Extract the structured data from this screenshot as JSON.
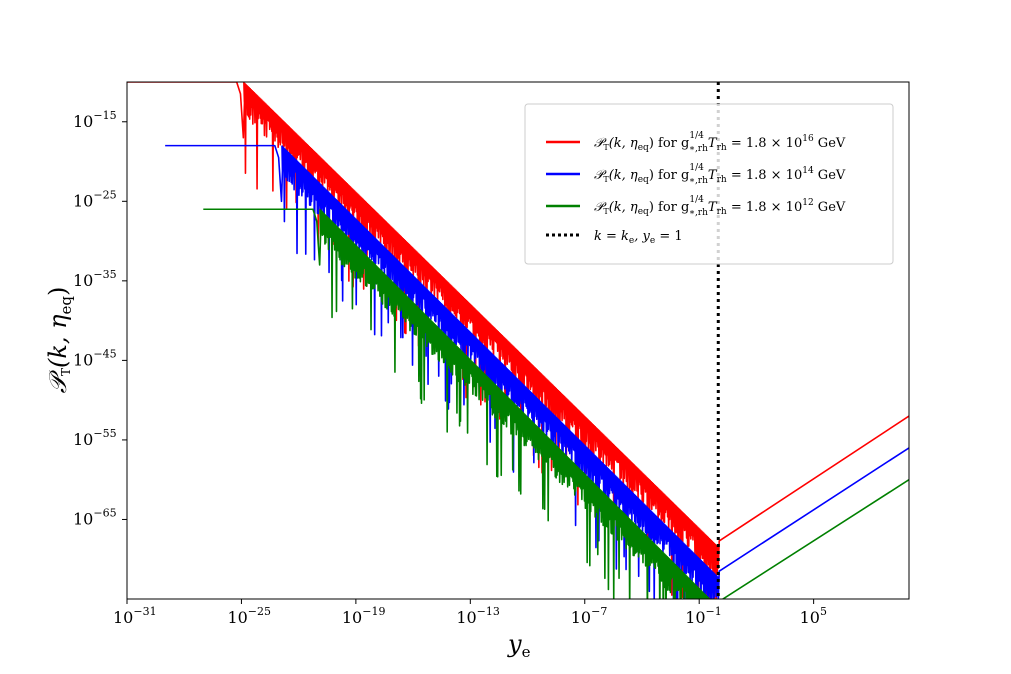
{
  "chart_data": {
    "type": "line",
    "x_scale": "log",
    "y_scale": "log",
    "xlim_log10": [
      -31,
      10
    ],
    "ylim_log10": [
      -75,
      -10
    ],
    "x_ticks": [
      {
        "base": "10",
        "exp": "−31",
        "log10": -31
      },
      {
        "base": "10",
        "exp": "−25",
        "log10": -25
      },
      {
        "base": "10",
        "exp": "−19",
        "log10": -19
      },
      {
        "base": "10",
        "exp": "−13",
        "log10": -13
      },
      {
        "base": "10",
        "exp": "−7",
        "log10": -7
      },
      {
        "base": "10",
        "exp": "−1",
        "log10": -1
      },
      {
        "base": "10",
        "exp": "5",
        "log10": 5
      }
    ],
    "y_ticks": [
      {
        "base": "10",
        "exp": "−15",
        "log10": -15
      },
      {
        "base": "10",
        "exp": "−25",
        "log10": -25
      },
      {
        "base": "10",
        "exp": "−35",
        "log10": -35
      },
      {
        "base": "10",
        "exp": "−45",
        "log10": -45
      },
      {
        "base": "10",
        "exp": "−55",
        "log10": -55
      },
      {
        "base": "10",
        "exp": "−65",
        "log10": -65
      }
    ],
    "xlabel": "y",
    "xlabel_sub": "e",
    "ylabel": "𝒫",
    "ylabel_sub": "T",
    "ylabel_args": "(k, η",
    "ylabel_args_sub": "eq",
    "ylabel_close": ")",
    "grid": false,
    "legend_position": "top-right",
    "series": [
      {
        "name_main": "𝒫",
        "name_sub": "T",
        "name_args": "(k, η",
        "name_args_sub": "eq",
        "name_mid": ") for g",
        "name_g_sup": "1/4",
        "name_g_sub": "∗,rh",
        "name_T": "T",
        "name_T_sub": "rh",
        "name_eq": " = 1.8 × 10",
        "name_exp": "16",
        "name_unit": " GeV",
        "color": "#ff0000",
        "plateau_log10_y": -10,
        "x_start_log10": -31,
        "x_dip_log10": -24.9,
        "slope_left": -2,
        "min_log10_y": -68.5,
        "x_min_log10": 0.0,
        "right_end_log10_y": -52
      },
      {
        "name_main": "𝒫",
        "name_sub": "T",
        "name_args": "(k, η",
        "name_args_sub": "eq",
        "name_mid": ") for g",
        "name_g_sup": "1/4",
        "name_g_sub": "∗,rh",
        "name_T": "T",
        "name_T_sub": "rh",
        "name_eq": " = 1.8 × 10",
        "name_exp": "14",
        "name_unit": " GeV",
        "color": "#0000ff",
        "plateau_log10_y": -18,
        "x_start_log10": -29,
        "x_dip_log10": -22.9,
        "slope_left": -2,
        "min_log10_y": -72.3,
        "x_min_log10": 0.0,
        "right_end_log10_y": -56
      },
      {
        "name_main": "𝒫",
        "name_sub": "T",
        "name_args": "(k, η",
        "name_args_sub": "eq",
        "name_mid": ") for g",
        "name_g_sup": "1/4",
        "name_g_sub": "∗,rh",
        "name_T": "T",
        "name_T_sub": "rh",
        "name_eq": " = 1.8 × 10",
        "name_exp": "12",
        "name_unit": " GeV",
        "color": "#008000",
        "plateau_log10_y": -26,
        "x_start_log10": -27,
        "x_dip_log10": -20.9,
        "slope_left": -2,
        "min_log10_y": -76.1,
        "x_min_log10": 0.0,
        "right_end_log10_y": -60
      }
    ],
    "vertical_line": {
      "x_log10": 0,
      "style": "dotted",
      "color": "#000000",
      "label_main": "k = k",
      "label_sub": "e",
      "label_mid": ", y",
      "label_sub2": "e",
      "label_end": " = 1"
    }
  }
}
